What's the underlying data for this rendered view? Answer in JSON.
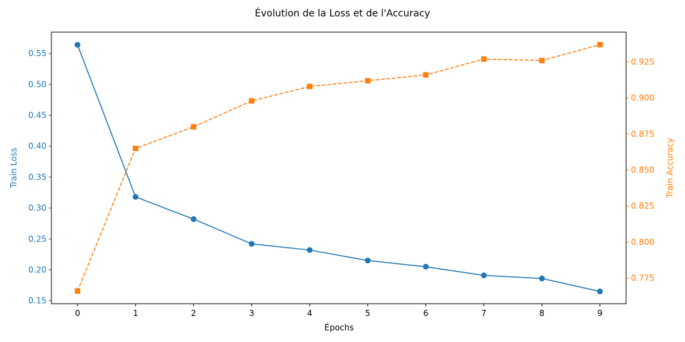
{
  "chart_data": {
    "type": "line",
    "title": "Évolution de la Loss et de l'Accuracy",
    "xlabel": "Épochs",
    "x": [
      0,
      1,
      2,
      3,
      4,
      5,
      6,
      7,
      8,
      9
    ],
    "x_ticks": [
      "0",
      "1",
      "2",
      "3",
      "4",
      "5",
      "6",
      "7",
      "8",
      "9"
    ],
    "xlim": [
      -0.45,
      9.45
    ],
    "grid": false,
    "left_axis": {
      "label": "Train Loss",
      "color": "#1f77b4",
      "ylim": [
        0.1452,
        0.5845
      ],
      "ticks": [
        0.15,
        0.2,
        0.25,
        0.3,
        0.35,
        0.4,
        0.45,
        0.5,
        0.55
      ],
      "tick_labels": [
        "0.15",
        "0.20",
        "0.25",
        "0.30",
        "0.35",
        "0.40",
        "0.45",
        "0.50",
        "0.55"
      ]
    },
    "right_axis": {
      "label": "Train Accuracy",
      "color": "#ff7f0e",
      "ylim": [
        0.7572,
        0.9457
      ],
      "ticks": [
        0.775,
        0.8,
        0.825,
        0.85,
        0.875,
        0.9,
        0.925
      ],
      "tick_labels": [
        "0.775",
        "0.800",
        "0.825",
        "0.850",
        "0.875",
        "0.900",
        "0.925"
      ]
    },
    "series": [
      {
        "axis": "left",
        "color": "#1f77b4",
        "marker": "circle",
        "line_style": "solid",
        "values": [
          0.564,
          0.318,
          0.282,
          0.242,
          0.232,
          0.215,
          0.205,
          0.191,
          0.186,
          0.165
        ]
      },
      {
        "axis": "right",
        "color": "#ff7f0e",
        "marker": "square",
        "line_style": "dashed",
        "values": [
          0.766,
          0.865,
          0.88,
          0.898,
          0.908,
          0.912,
          0.916,
          0.927,
          0.926,
          0.937
        ]
      }
    ]
  }
}
